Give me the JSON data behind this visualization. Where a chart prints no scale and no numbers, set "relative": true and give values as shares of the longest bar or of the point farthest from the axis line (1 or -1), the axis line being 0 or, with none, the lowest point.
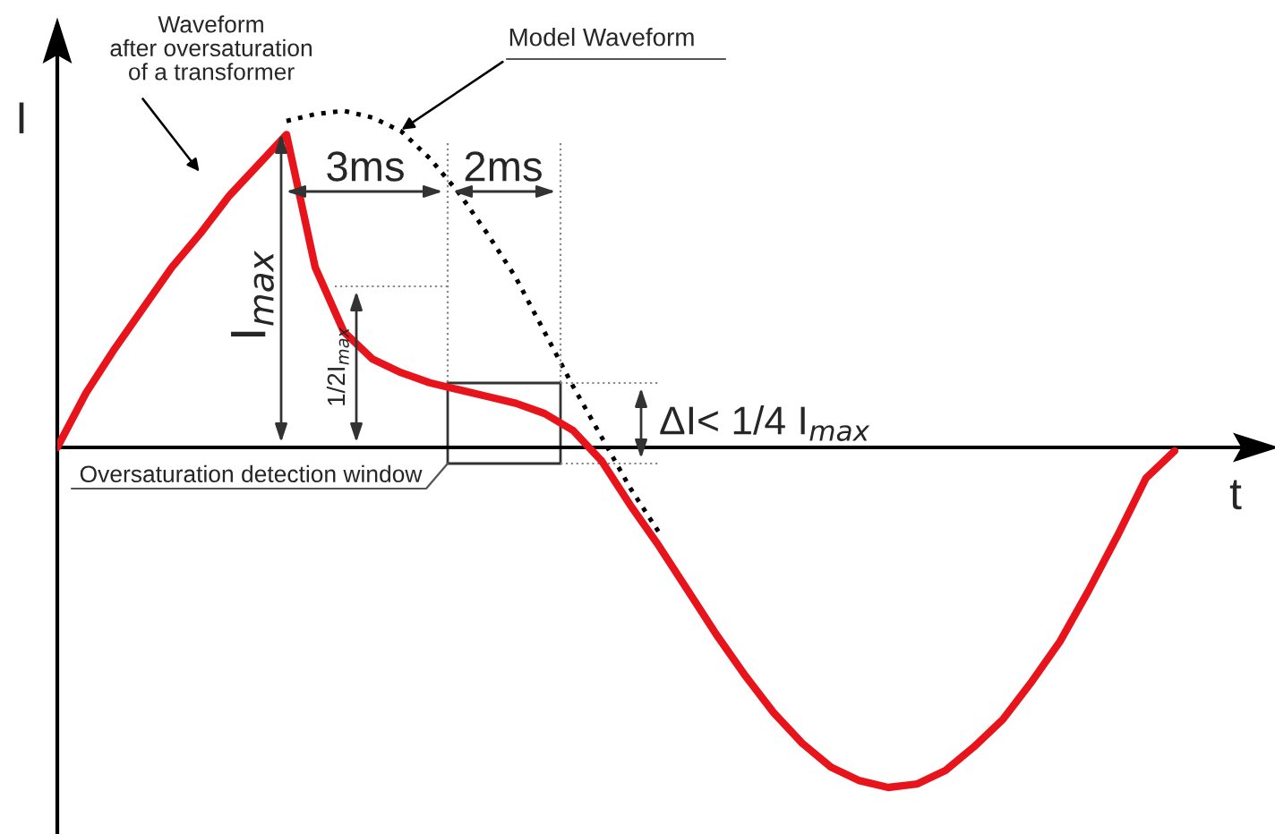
{
  "chart_data": {
    "type": "line",
    "relative": true,
    "xlabel": "t",
    "ylabel": "I",
    "legend": false,
    "grid": false,
    "marker": "none",
    "categories": [
      null,
      null,
      null,
      null,
      null,
      null,
      null,
      null,
      null,
      null,
      null,
      null,
      null,
      null,
      null,
      null,
      null,
      null,
      null,
      null,
      null,
      null,
      null,
      null,
      null,
      null,
      null,
      null,
      null,
      null,
      null,
      null,
      null,
      null,
      null,
      null,
      null,
      null,
      null,
      null
    ],
    "series": [
      {
        "color": "#e8141c",
        "line_style": "solid",
        "values": [
          0,
          0.16,
          0.29,
          0.41,
          0.53,
          0.63,
          0.74,
          0.83,
          0.92,
          0.53,
          0.34,
          0.26,
          0.22,
          0.19,
          0.17,
          0.15,
          0.13,
          0.1,
          0.05,
          -0.04,
          -0.17,
          -0.29,
          -0.42,
          -0.55,
          -0.67,
          -0.78,
          -0.87,
          -0.94,
          -0.98,
          -1,
          -0.99,
          -0.95,
          -0.88,
          -0.8,
          -0.69,
          -0.57,
          -0.42,
          -0.26,
          -0.09,
          -0.01
        ]
      },
      {
        "color": "#000000",
        "line_style": "dotted",
        "values": [
          null,
          null,
          null,
          null,
          null,
          null,
          null,
          null,
          0.96,
          0.98,
          0.99,
          0.97,
          0.93,
          0.85,
          0.75,
          0.63,
          0.5,
          0.34,
          0.18,
          0.03,
          -0.12,
          -0.25,
          null,
          null,
          null,
          null,
          null,
          null,
          null,
          null,
          null,
          null,
          null,
          null,
          null,
          null,
          null,
          null,
          null,
          null
        ]
      }
    ],
    "annotations": [
      "Waveform\nafter oversaturation\nof a transformer",
      "Model Waveform",
      "3ms",
      "2ms",
      "I$_{max}$",
      "1/2I$_{max}$",
      "ΔI< 1/4 I$_{max}$",
      "Oversaturation detection window"
    ]
  }
}
